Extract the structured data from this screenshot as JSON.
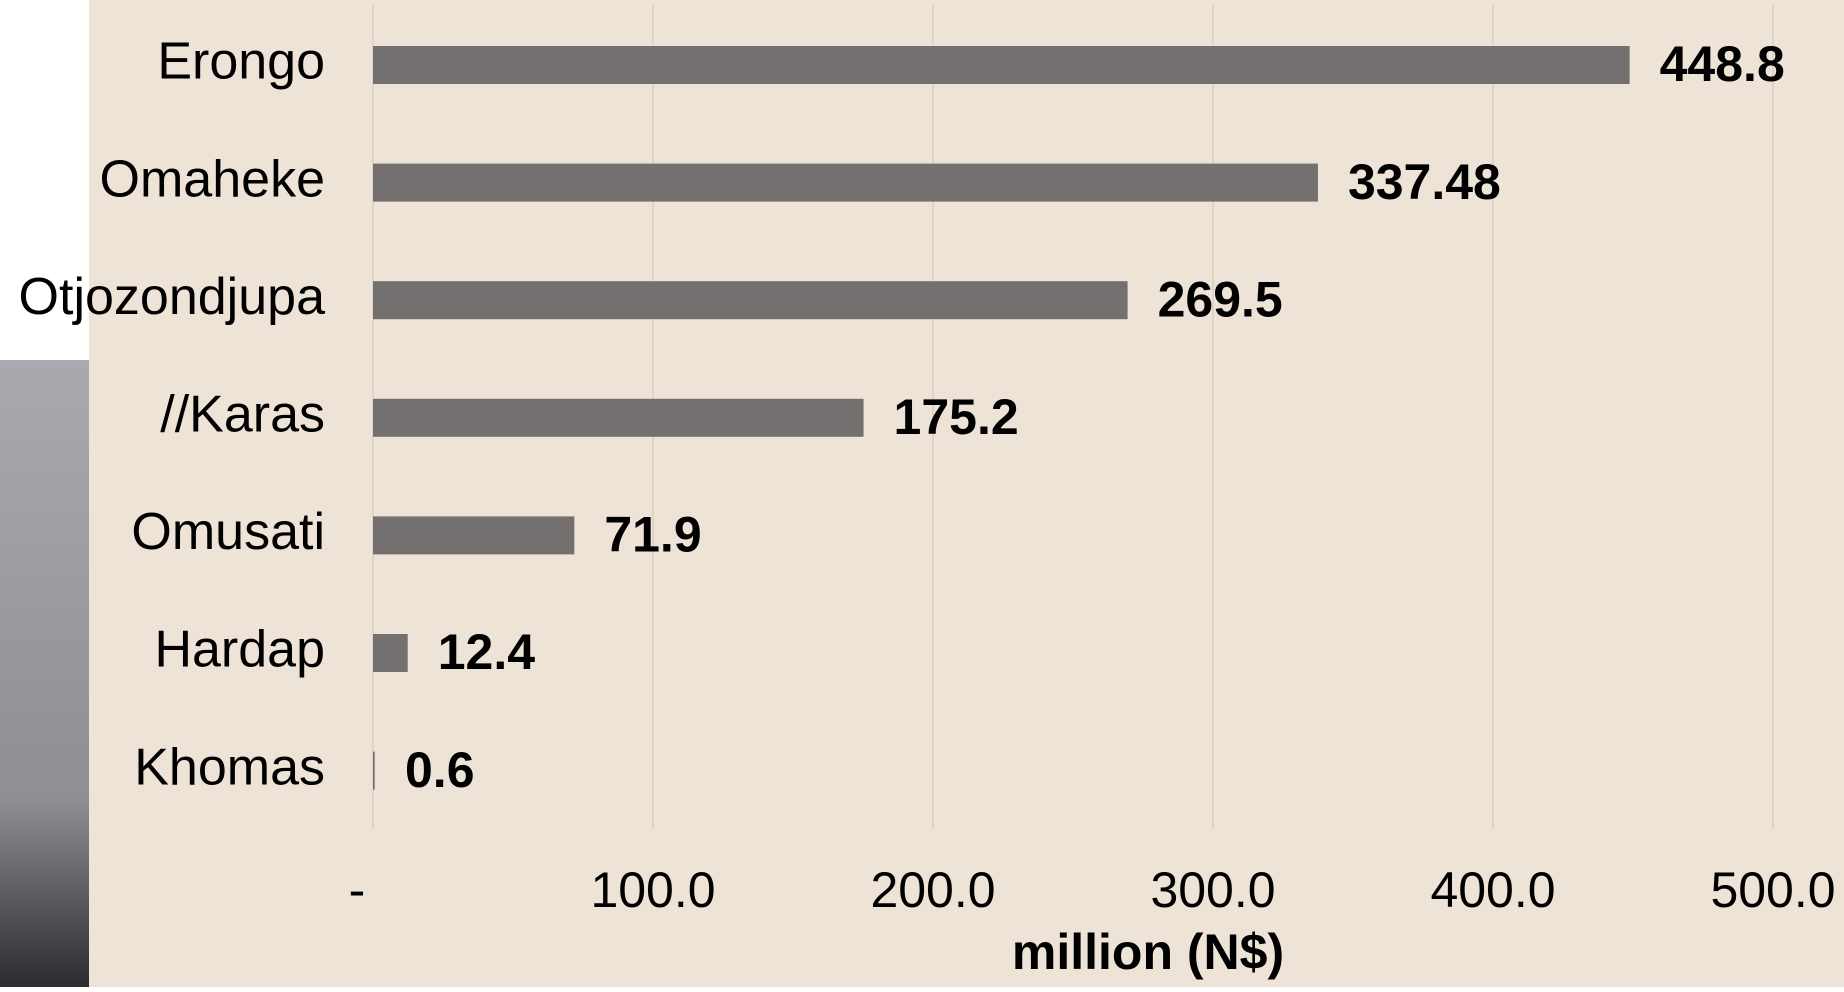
{
  "chart_data": {
    "type": "barh",
    "categories": [
      "Erongo",
      "Omaheke",
      "Otjozondjupa",
      "//Karas",
      "Omusati",
      "Hardap",
      "Khomas"
    ],
    "values": [
      448.8,
      337.48,
      269.5,
      175.2,
      71.9,
      12.4,
      0.6
    ],
    "color": "#747070",
    "x_label": "million (N$)",
    "xlim": [
      0,
      500
    ],
    "xticks": [
      {
        "value": 0,
        "label": "-"
      },
      {
        "value": 100,
        "label": "100.0"
      },
      {
        "value": 200,
        "label": "200.0"
      },
      {
        "value": 300,
        "label": "300.0"
      },
      {
        "value": 400,
        "label": "400.0"
      },
      {
        "value": 500,
        "label": "500.0"
      }
    ],
    "grid": true
  }
}
